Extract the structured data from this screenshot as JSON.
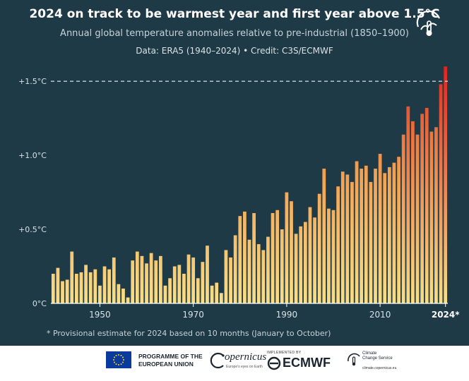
{
  "header": {
    "title": "2024 on track to be warmest year and first year above 1.5°C",
    "subtitle": "Annual global temperature anomalies relative to pre-industrial (1850–1900)",
    "source": "Data: ERA5 (1940–2024)  •  Credit: C3S/ECMWF"
  },
  "footnote": "* Provisional estimate for 2024 based on 10 months (January to October)",
  "footer": {
    "eu_line1": "PROGRAMME OF THE",
    "eu_line2": "EUROPEAN UNION",
    "copernicus": "opernicus",
    "copernicus_tagline": "Europe's eyes on Earth",
    "ecmwf_implemented": "IMPLEMENTED BY",
    "ecmwf": "ECMWF",
    "ccs_line1": "Climate",
    "ccs_line2": "Change Service",
    "ccs_url": "climate.copernicus.eu"
  },
  "colors": {
    "background": "#1e3a46",
    "bar_low": "#f9de86",
    "bar_mid": "#f29a4c",
    "bar_high": "#e0241d",
    "threshold_line": "#c7d3d8",
    "footer_background": "#ffffff"
  },
  "chart_data": {
    "type": "bar",
    "x": [
      1940,
      1941,
      1942,
      1943,
      1944,
      1945,
      1946,
      1947,
      1948,
      1949,
      1950,
      1951,
      1952,
      1953,
      1954,
      1955,
      1956,
      1957,
      1958,
      1959,
      1960,
      1961,
      1962,
      1963,
      1964,
      1965,
      1966,
      1967,
      1968,
      1969,
      1970,
      1971,
      1972,
      1973,
      1974,
      1975,
      1976,
      1977,
      1978,
      1979,
      1980,
      1981,
      1982,
      1983,
      1984,
      1985,
      1986,
      1987,
      1988,
      1989,
      1990,
      1991,
      1992,
      1993,
      1994,
      1995,
      1996,
      1997,
      1998,
      1999,
      2000,
      2001,
      2002,
      2003,
      2004,
      2005,
      2006,
      2007,
      2008,
      2009,
      2010,
      2011,
      2012,
      2013,
      2014,
      2015,
      2016,
      2017,
      2018,
      2019,
      2020,
      2021,
      2022,
      2023,
      2024
    ],
    "values": [
      0.2,
      0.24,
      0.15,
      0.16,
      0.35,
      0.2,
      0.21,
      0.26,
      0.21,
      0.23,
      0.12,
      0.25,
      0.23,
      0.31,
      0.13,
      0.1,
      0.04,
      0.29,
      0.35,
      0.32,
      0.27,
      0.34,
      0.29,
      0.32,
      0.12,
      0.17,
      0.25,
      0.26,
      0.2,
      0.33,
      0.31,
      0.17,
      0.28,
      0.39,
      0.12,
      0.14,
      0.07,
      0.36,
      0.31,
      0.46,
      0.59,
      0.62,
      0.43,
      0.61,
      0.4,
      0.36,
      0.45,
      0.61,
      0.63,
      0.5,
      0.75,
      0.69,
      0.47,
      0.52,
      0.55,
      0.65,
      0.58,
      0.74,
      0.91,
      0.64,
      0.63,
      0.79,
      0.89,
      0.87,
      0.82,
      0.96,
      0.91,
      0.93,
      0.82,
      0.91,
      1.01,
      0.88,
      0.92,
      0.95,
      0.99,
      1.14,
      1.33,
      1.23,
      1.14,
      1.28,
      1.32,
      1.16,
      1.19,
      1.48,
      1.6
    ],
    "ylim": [
      0,
      1.62
    ],
    "yticks": [
      0,
      0.5,
      1.0,
      1.5
    ],
    "ytick_labels": [
      "0°C",
      "+0.5°C",
      "+1.0°C",
      "+1.5°C"
    ],
    "xticks": [
      1950,
      1970,
      1990,
      2010,
      2024
    ],
    "xtick_labels": [
      "1950",
      "1970",
      "1990",
      "2010",
      "2024*"
    ],
    "threshold": 1.5,
    "grid": false
  }
}
